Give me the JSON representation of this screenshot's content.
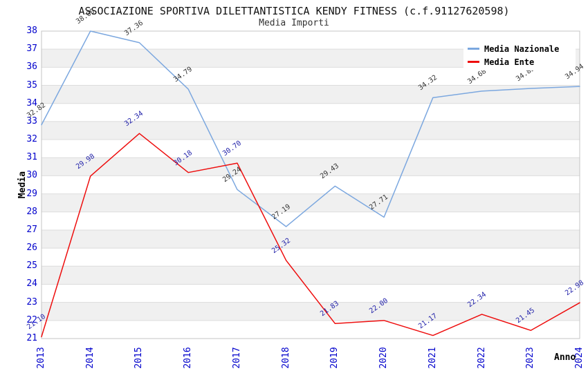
{
  "header": {
    "title": "ASSOCIAZIONE SPORTIVA DILETTANTISTICA KENDY FITNESS (c.f.91127620598)",
    "subtitle": "Media Importi"
  },
  "axes": {
    "y_label": "Media",
    "x_label": "Anno"
  },
  "legend": {
    "position": "top-right",
    "items": [
      {
        "label": "Media Nazionale",
        "color": "#7BA7DF"
      },
      {
        "label": "Media Ente",
        "color": "#EE0D0D"
      }
    ]
  },
  "colors": {
    "background": "#FFFFFF",
    "band_fill": "#F0F0F0",
    "gridline": "#DCDCDC",
    "plot_border": "#C4C4C4",
    "tick_label": "#0000CC"
  },
  "chart_data": {
    "type": "line",
    "title": "ASSOCIAZIONE SPORTIVA DILETTANTISTICA KENDY FITNESS (c.f.91127620598)",
    "subtitle": "Media Importi",
    "xlabel": "Anno",
    "ylabel": "Media",
    "x": [
      "2013",
      "2014",
      "2015",
      "2016",
      "2017",
      "2018",
      "2019",
      "2020",
      "2021",
      "2022",
      "2023",
      "2024"
    ],
    "ylim": [
      21,
      38
    ],
    "y_tick_step": 1,
    "grid": "horizontal-gridlines-with-alternating-bands",
    "shaded_bands": [
      [
        22,
        23
      ],
      [
        24,
        25
      ],
      [
        26,
        27
      ],
      [
        28,
        29
      ],
      [
        30,
        31
      ],
      [
        32,
        33
      ],
      [
        34,
        35
      ],
      [
        36,
        37
      ]
    ],
    "legend_position": "top-right",
    "value_label_decimals": 2,
    "series": [
      {
        "name": "Media Nazionale",
        "color": "#7BA7DF",
        "label_color": "#333333",
        "values": [
          32.82,
          38.0,
          37.36,
          34.79,
          29.24,
          27.19,
          29.43,
          27.71,
          34.32,
          34.68,
          34.83,
          34.94
        ]
      },
      {
        "name": "Media Ente",
        "color": "#EE0D0D",
        "label_color": "#2222AA",
        "values": [
          21.1,
          29.98,
          32.34,
          30.18,
          30.7,
          25.32,
          21.83,
          22.0,
          21.17,
          22.34,
          21.45,
          22.98
        ]
      }
    ]
  }
}
